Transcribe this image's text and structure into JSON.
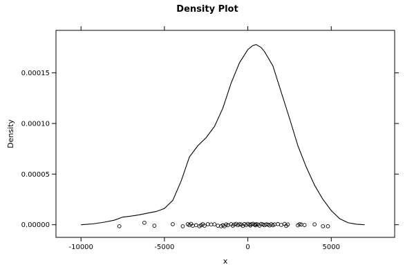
{
  "chart_data": {
    "type": "line",
    "title": "Density Plot",
    "xlabel": "x",
    "ylabel": "Density",
    "xlim": [
      -11500,
      8800
    ],
    "ylim": [
      -1.25e-05,
      0.000192
    ],
    "x_ticks": [
      -10000,
      -5000,
      0,
      5000
    ],
    "x_tick_labels": [
      "-10000",
      "-5000",
      "0",
      "5000"
    ],
    "y_ticks": [
      0,
      5e-05,
      0.0001,
      0.00015
    ],
    "y_tick_labels": [
      "0.00000",
      "0.00005",
      "0.00010",
      "0.00015"
    ],
    "grid": false,
    "series": [
      {
        "x": [
          -10000,
          -9300,
          -8600,
          -8000,
          -7500,
          -7000,
          -6500,
          -6000,
          -5500,
          -5000,
          -4500,
          -4000,
          -3500,
          -3000,
          -2500,
          -2000,
          -1500,
          -1000,
          -500,
          0,
          300,
          500,
          800,
          1000,
          1500,
          2000,
          2500,
          3000,
          3500,
          4000,
          4500,
          5000,
          5500,
          6000,
          6500,
          7000
        ],
        "y": [
          0,
          8e-07,
          2.5e-06,
          4.5e-06,
          7.5e-06,
          8.5e-06,
          9.8e-06,
          1.15e-05,
          1.3e-05,
          1.6e-05,
          2.4e-05,
          4.3e-05,
          6.7e-05,
          7.8e-05,
          8.6e-05,
          9.7e-05,
          0.000115,
          0.00014,
          0.00016,
          0.000173,
          0.000177,
          0.000178,
          0.000175,
          0.000171,
          0.000157,
          0.000131,
          0.000105,
          7.8e-05,
          5.7e-05,
          3.9e-05,
          2.5e-05,
          1.4e-05,
          6e-06,
          2e-06,
          5e-07,
          0
        ]
      }
    ],
    "rug": {
      "x": [
        -7700,
        -6200,
        -5600,
        -4500,
        -3900,
        -3600,
        -3500,
        -3400,
        -3300,
        -3100,
        -2900,
        -2800,
        -2700,
        -2600,
        -2400,
        -2200,
        -2000,
        -1800,
        -1600,
        -1500,
        -1400,
        -1300,
        -1200,
        -1000,
        -900,
        -800,
        -700,
        -600,
        -500,
        -400,
        -300,
        -200,
        -100,
        0,
        100,
        150,
        200,
        300,
        400,
        450,
        500,
        600,
        700,
        800,
        900,
        1000,
        1100,
        1200,
        1300,
        1400,
        1500,
        1600,
        1800,
        2000,
        2200,
        2300,
        2400,
        3000,
        3100,
        3200,
        3400,
        4000,
        4500,
        4800
      ],
      "y": [
        -1.5e-06,
        2e-06,
        -1e-06,
        5e-07,
        -1.5e-06,
        5e-07,
        -5e-07,
        8e-07,
        -1e-06,
        -5e-07,
        -1.5e-06,
        -5e-07,
        5e-07,
        -1e-06,
        5e-07,
        2e-07,
        4e-07,
        -1e-06,
        -1.5e-06,
        -5e-07,
        -1.5e-06,
        3e-07,
        -5e-07,
        5e-07,
        -1e-06,
        2e-07,
        8e-07,
        -5e-07,
        5e-07,
        2e-07,
        -1.2e-06,
        6e-07,
        -4e-07,
        8e-07,
        2e-07,
        -8e-07,
        4e-07,
        9e-07,
        1e-07,
        -6e-07,
        5e-07,
        2e-07,
        -9e-07,
        7e-07,
        2e-07,
        -5e-07,
        4e-07,
        1e-07,
        -7e-07,
        5e-07,
        -5e-07,
        3e-07,
        6e-07,
        -2e-07,
        8e-07,
        -1.2e-06,
        2e-07,
        -6e-07,
        5e-07,
        1e-07,
        -3e-07,
        3e-07,
        -1.5e-06,
        -1.5e-06
      ]
    }
  }
}
